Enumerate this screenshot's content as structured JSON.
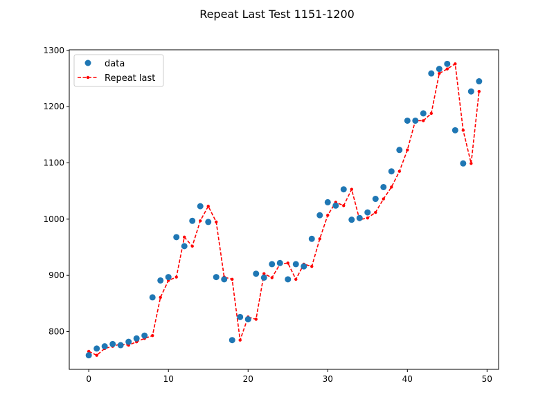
{
  "chart_data": {
    "type": "line",
    "title": "Repeat Last Test 1151-1200",
    "xlabel": "",
    "ylabel": "",
    "xlim": [
      -2.45,
      51.45
    ],
    "ylim": [
      733,
      1301
    ],
    "x_ticks": [
      0,
      10,
      20,
      30,
      40,
      50
    ],
    "y_ticks": [
      800,
      900,
      1000,
      1100,
      1200,
      1300
    ],
    "grid": false,
    "legend_position": "top-left",
    "x": [
      0,
      1,
      2,
      3,
      4,
      5,
      6,
      7,
      8,
      9,
      10,
      11,
      12,
      13,
      14,
      15,
      16,
      17,
      18,
      19,
      20,
      21,
      22,
      23,
      24,
      25,
      26,
      27,
      28,
      29,
      30,
      31,
      32,
      33,
      34,
      35,
      36,
      37,
      38,
      39,
      40,
      41,
      42,
      43,
      44,
      45,
      46,
      47,
      48,
      49
    ],
    "series": [
      {
        "name": "data",
        "style": "markers",
        "color": "#1f77b4",
        "values": [
          758,
          770,
          774,
          778,
          776,
          782,
          788,
          793,
          861,
          891,
          897,
          968,
          952,
          997,
          1023,
          995,
          897,
          893,
          785,
          826,
          822,
          903,
          896,
          920,
          922,
          893,
          920,
          916,
          965,
          1007,
          1030,
          1024,
          1053,
          999,
          1002,
          1012,
          1036,
          1057,
          1085,
          1123,
          1175,
          1175,
          1188,
          1259,
          1267,
          1276,
          1158,
          1099,
          1227,
          1245
        ]
      },
      {
        "name": "Repeat last",
        "style": "dashed-line-with-dots",
        "color": "#ff0000",
        "values": [
          765,
          758,
          770,
          774,
          778,
          776,
          782,
          788,
          793,
          861,
          891,
          897,
          968,
          952,
          997,
          1023,
          995,
          897,
          893,
          785,
          826,
          822,
          903,
          896,
          920,
          922,
          893,
          920,
          916,
          965,
          1007,
          1030,
          1024,
          1053,
          999,
          1002,
          1012,
          1036,
          1057,
          1085,
          1123,
          1175,
          1175,
          1188,
          1259,
          1267,
          1276,
          1158,
          1099,
          1227
        ]
      }
    ]
  }
}
